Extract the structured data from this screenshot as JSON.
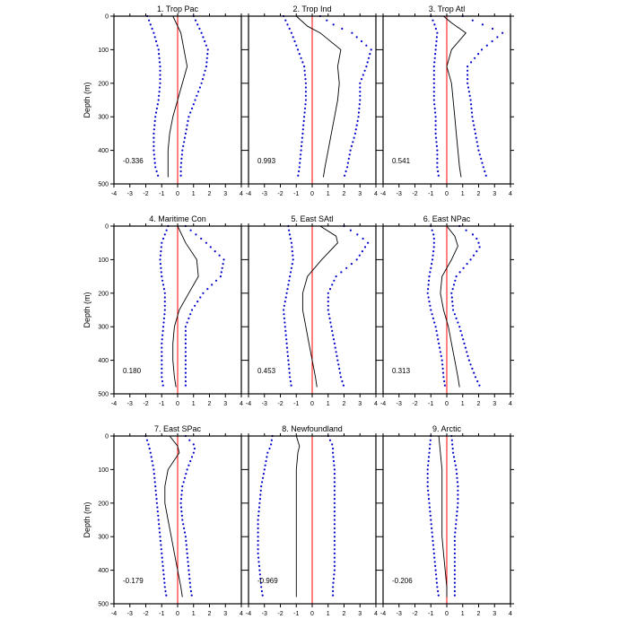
{
  "figure": {
    "ylabel": "Depth (m)",
    "zero_line_color": "#ff0000",
    "mean_color": "#000000",
    "bound_color": "#0000cc"
  },
  "chart_data": [
    {
      "type": "line",
      "title": "1. Trop Pac",
      "annotation": "-0.336",
      "ylabel": "Depth (m)",
      "xlim": [
        -4,
        4
      ],
      "ylim": [
        500,
        0
      ],
      "xticks": [
        -4,
        -3,
        -2,
        -1,
        0,
        1,
        2,
        3,
        4
      ],
      "yticks": [
        0,
        100,
        200,
        300,
        400,
        500
      ],
      "depth": [
        0,
        50,
        100,
        150,
        200,
        250,
        300,
        350,
        400,
        450,
        480
      ],
      "series": [
        {
          "role": "mean",
          "values": [
            -0.3,
            0.2,
            0.4,
            0.6,
            0.3,
            0.0,
            -0.3,
            -0.5,
            -0.6,
            -0.6,
            -0.6
          ]
        },
        {
          "role": "upper",
          "values": [
            1.0,
            1.5,
            1.9,
            1.8,
            1.5,
            1.1,
            0.7,
            0.5,
            0.3,
            0.2,
            0.2
          ]
        },
        {
          "role": "lower",
          "values": [
            -1.9,
            -1.5,
            -1.2,
            -1.1,
            -1.1,
            -1.2,
            -1.4,
            -1.5,
            -1.5,
            -1.4,
            -1.2
          ]
        }
      ]
    },
    {
      "type": "line",
      "title": "2. Trop Ind",
      "annotation": "0.993",
      "xlim": [
        -4,
        4
      ],
      "ylim": [
        500,
        0
      ],
      "xticks": [
        -4,
        -3,
        -2,
        -1,
        0,
        1,
        2,
        3,
        4
      ],
      "yticks": [
        0,
        100,
        200,
        300,
        400,
        500
      ],
      "depth": [
        0,
        30,
        50,
        100,
        150,
        200,
        250,
        300,
        350,
        400,
        450,
        480
      ],
      "series": [
        {
          "role": "mean",
          "values": [
            -1.0,
            -0.3,
            0.5,
            1.8,
            1.6,
            1.7,
            1.6,
            1.4,
            1.2,
            1.0,
            0.8,
            0.7
          ]
        },
        {
          "role": "upper",
          "values": [
            0.5,
            1.5,
            2.5,
            3.7,
            3.4,
            3.0,
            3.0,
            2.9,
            2.7,
            2.4,
            2.2,
            2.0
          ]
        },
        {
          "role": "lower",
          "values": [
            -1.8,
            -1.5,
            -1.3,
            -0.9,
            -0.5,
            -0.4,
            -0.4,
            -0.5,
            -0.6,
            -0.7,
            -0.8,
            -0.9
          ]
        }
      ]
    },
    {
      "type": "line",
      "title": "3. Trop Atl",
      "annotation": "0.541",
      "xlim": [
        -4,
        4
      ],
      "ylim": [
        500,
        0
      ],
      "xticks": [
        -4,
        -3,
        -2,
        -1,
        0,
        1,
        2,
        3,
        4
      ],
      "yticks": [
        0,
        100,
        200,
        300,
        400,
        500
      ],
      "depth": [
        0,
        20,
        50,
        100,
        150,
        200,
        250,
        300,
        350,
        400,
        450,
        480
      ],
      "series": [
        {
          "role": "mean",
          "values": [
            -0.2,
            0.3,
            1.2,
            0.3,
            0.0,
            0.3,
            0.4,
            0.5,
            0.6,
            0.7,
            0.8,
            0.9
          ]
        },
        {
          "role": "upper",
          "values": [
            1.0,
            2.0,
            3.5,
            2.2,
            1.3,
            1.3,
            1.5,
            1.6,
            1.8,
            2.0,
            2.3,
            2.5
          ]
        },
        {
          "role": "lower",
          "values": [
            -1.0,
            -0.8,
            -0.6,
            -0.7,
            -0.8,
            -0.8,
            -0.8,
            -0.7,
            -0.7,
            -0.6,
            -0.6,
            -0.5
          ]
        }
      ]
    },
    {
      "type": "line",
      "title": "4. Maritime Con",
      "annotation": "0.180",
      "ylabel": "Depth (m)",
      "xlim": [
        -4,
        4
      ],
      "ylim": [
        500,
        0
      ],
      "xticks": [
        -4,
        -3,
        -2,
        -1,
        0,
        1,
        2,
        3,
        4
      ],
      "yticks": [
        0,
        100,
        200,
        300,
        400,
        500
      ],
      "depth": [
        0,
        50,
        100,
        150,
        200,
        250,
        300,
        350,
        400,
        450,
        480
      ],
      "series": [
        {
          "role": "mean",
          "values": [
            0.0,
            0.5,
            1.2,
            1.3,
            0.7,
            0.1,
            -0.2,
            -0.3,
            -0.3,
            -0.2,
            -0.1
          ]
        },
        {
          "role": "upper",
          "values": [
            0.5,
            1.8,
            2.9,
            2.7,
            1.6,
            0.9,
            0.5,
            0.5,
            0.5,
            0.5,
            0.5
          ]
        },
        {
          "role": "lower",
          "values": [
            -0.6,
            -1.0,
            -1.1,
            -1.0,
            -0.8,
            -0.8,
            -0.9,
            -1.0,
            -1.0,
            -1.0,
            -0.9
          ]
        }
      ]
    },
    {
      "type": "line",
      "title": "5. East SAtl",
      "annotation": "0.453",
      "xlim": [
        -4,
        4
      ],
      "ylim": [
        500,
        0
      ],
      "xticks": [
        -4,
        -3,
        -2,
        -1,
        0,
        1,
        2,
        3,
        4
      ],
      "yticks": [
        0,
        100,
        200,
        300,
        400,
        500
      ],
      "depth": [
        0,
        30,
        50,
        100,
        150,
        200,
        250,
        300,
        350,
        400,
        450,
        480
      ],
      "series": [
        {
          "role": "mean",
          "values": [
            0.5,
            1.5,
            1.6,
            0.6,
            -0.3,
            -0.6,
            -0.6,
            -0.4,
            -0.2,
            0.0,
            0.2,
            0.3
          ]
        },
        {
          "role": "upper",
          "values": [
            2.0,
            3.0,
            3.5,
            2.8,
            1.5,
            1.0,
            1.0,
            1.2,
            1.4,
            1.6,
            1.8,
            2.0
          ]
        },
        {
          "role": "lower",
          "values": [
            -1.5,
            -1.4,
            -1.3,
            -1.2,
            -1.4,
            -1.6,
            -1.8,
            -1.7,
            -1.6,
            -1.5,
            -1.4,
            -1.3
          ]
        }
      ]
    },
    {
      "type": "line",
      "title": "6. East NPac",
      "annotation": "0.313",
      "xlim": [
        -4,
        4
      ],
      "ylim": [
        500,
        0
      ],
      "xticks": [
        -4,
        -3,
        -2,
        -1,
        0,
        1,
        2,
        3,
        4
      ],
      "yticks": [
        0,
        100,
        200,
        300,
        400,
        500
      ],
      "depth": [
        0,
        30,
        60,
        100,
        150,
        200,
        250,
        300,
        350,
        400,
        450,
        480
      ],
      "series": [
        {
          "role": "mean",
          "values": [
            0.0,
            0.5,
            0.7,
            0.3,
            -0.3,
            -0.4,
            -0.2,
            0.1,
            0.3,
            0.5,
            0.7,
            0.8
          ]
        },
        {
          "role": "upper",
          "values": [
            0.8,
            1.8,
            2.1,
            1.5,
            0.6,
            0.3,
            0.4,
            0.8,
            1.1,
            1.4,
            1.8,
            2.1
          ]
        },
        {
          "role": "lower",
          "values": [
            -1.0,
            -0.8,
            -0.8,
            -0.9,
            -1.1,
            -1.2,
            -1.0,
            -0.7,
            -0.5,
            -0.3,
            -0.2,
            -0.1
          ]
        }
      ]
    },
    {
      "type": "line",
      "title": "7. East SPac",
      "annotation": "-0.179",
      "ylabel": "Depth (m)",
      "xlim": [
        -4,
        4
      ],
      "ylim": [
        500,
        0
      ],
      "xticks": [
        -4,
        -3,
        -2,
        -1,
        0,
        1,
        2,
        3,
        4
      ],
      "yticks": [
        0,
        100,
        200,
        300,
        400,
        500
      ],
      "depth": [
        0,
        30,
        50,
        100,
        150,
        200,
        250,
        300,
        350,
        400,
        450,
        480
      ],
      "series": [
        {
          "role": "mean",
          "values": [
            -0.5,
            0.0,
            0.1,
            -0.6,
            -0.8,
            -0.8,
            -0.6,
            -0.4,
            -0.2,
            0.0,
            0.2,
            0.3
          ]
        },
        {
          "role": "upper",
          "values": [
            0.5,
            1.1,
            1.0,
            0.6,
            0.3,
            0.2,
            0.3,
            0.5,
            0.6,
            0.7,
            0.8,
            0.9
          ]
        },
        {
          "role": "lower",
          "values": [
            -2.0,
            -1.8,
            -1.7,
            -1.5,
            -1.4,
            -1.3,
            -1.2,
            -1.1,
            -1.0,
            -0.9,
            -0.8,
            -0.7
          ]
        }
      ]
    },
    {
      "type": "line",
      "title": "8. Newfoundland",
      "annotation": "-0.969",
      "xlim": [
        -4,
        4
      ],
      "ylim": [
        500,
        0
      ],
      "xticks": [
        -4,
        -3,
        -2,
        -1,
        0,
        1,
        2,
        3,
        4
      ],
      "yticks": [
        0,
        100,
        200,
        300,
        400,
        500
      ],
      "depth": [
        0,
        30,
        50,
        100,
        150,
        200,
        250,
        300,
        350,
        400,
        450,
        480
      ],
      "series": [
        {
          "role": "mean",
          "values": [
            -1.0,
            -0.8,
            -0.9,
            -1.0,
            -1.0,
            -1.0,
            -1.0,
            -1.0,
            -1.0,
            -1.0,
            -1.0,
            -1.0
          ]
        },
        {
          "role": "upper",
          "values": [
            1.0,
            1.3,
            1.3,
            1.4,
            1.4,
            1.4,
            1.4,
            1.4,
            1.4,
            1.4,
            1.3,
            1.3
          ]
        },
        {
          "role": "lower",
          "values": [
            -2.5,
            -2.6,
            -2.8,
            -3.0,
            -3.2,
            -3.3,
            -3.4,
            -3.4,
            -3.4,
            -3.3,
            -3.2,
            -3.1
          ]
        }
      ]
    },
    {
      "type": "line",
      "title": "9. Arctic",
      "annotation": "-0.206",
      "xlim": [
        -4,
        4
      ],
      "ylim": [
        500,
        0
      ],
      "xticks": [
        -4,
        -3,
        -2,
        -1,
        0,
        1,
        2,
        3,
        4
      ],
      "yticks": [
        0,
        100,
        200,
        300,
        400,
        500
      ],
      "depth": [
        0,
        50,
        100,
        150,
        200,
        250,
        300,
        350,
        400,
        450,
        480
      ],
      "series": [
        {
          "role": "mean",
          "values": [
            -0.5,
            -0.4,
            -0.3,
            -0.3,
            -0.3,
            -0.3,
            -0.3,
            -0.2,
            -0.1,
            0.0,
            0.0
          ]
        },
        {
          "role": "upper",
          "values": [
            0.3,
            0.4,
            0.6,
            0.7,
            0.7,
            0.6,
            0.5,
            0.5,
            0.5,
            0.5,
            0.5
          ]
        },
        {
          "role": "lower",
          "values": [
            -1.0,
            -1.1,
            -1.2,
            -1.2,
            -1.1,
            -1.0,
            -0.9,
            -0.8,
            -0.7,
            -0.6,
            -0.5
          ]
        }
      ]
    }
  ]
}
